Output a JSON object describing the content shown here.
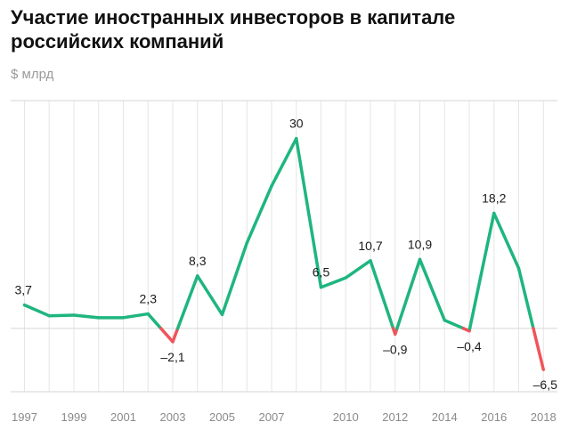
{
  "title_line1": "Участие иностранных инвесторов в капитале",
  "title_line2": "российских компаний",
  "subtitle": "$ млрд",
  "colors": {
    "positive": "#1fb57f",
    "negative": "#f0545a"
  },
  "chart_data": {
    "type": "line",
    "title": "Участие иностранных инвесторов в капитале российских компаний",
    "ylabel": "$ млрд",
    "xlabel": "",
    "grid": true,
    "ylim": [
      -10,
      36
    ],
    "x": [
      1997,
      1998,
      1999,
      2000,
      2001,
      2002,
      2003,
      2004,
      2005,
      2006,
      2007,
      2008,
      2009,
      2010,
      2011,
      2012,
      2013,
      2014,
      2015,
      2016,
      2017,
      2018
    ],
    "values": [
      3.7,
      2.0,
      2.1,
      1.7,
      1.7,
      2.3,
      -2.1,
      8.3,
      2.2,
      13.5,
      22.5,
      30.0,
      6.5,
      8.0,
      10.7,
      -0.9,
      10.9,
      1.3,
      -0.4,
      18.2,
      9.5,
      -6.5
    ],
    "point_labels": [
      {
        "x": 1997,
        "text": "3,7"
      },
      {
        "x": 2002,
        "text": "2,3"
      },
      {
        "x": 2003,
        "text": "–2,1"
      },
      {
        "x": 2004,
        "text": "8,3"
      },
      {
        "x": 2008,
        "text": "30"
      },
      {
        "x": 2009,
        "text": "6,5"
      },
      {
        "x": 2011,
        "text": "10,7"
      },
      {
        "x": 2012,
        "text": "–0,9"
      },
      {
        "x": 2013,
        "text": "10,9"
      },
      {
        "x": 2015,
        "text": "–0,4"
      },
      {
        "x": 2016,
        "text": "18,2"
      },
      {
        "x": 2018,
        "text": "–6,5"
      }
    ],
    "x_ticks": [
      {
        "x": 1997,
        "label": "1997"
      },
      {
        "x": 1999,
        "label": "1999"
      },
      {
        "x": 2001,
        "label": "2001"
      },
      {
        "x": 2003,
        "label": "2003"
      },
      {
        "x": 2005,
        "label": "2005"
      },
      {
        "x": 2007,
        "label": "2007"
      },
      {
        "x": 2010,
        "label": "2010"
      },
      {
        "x": 2012,
        "label": "2012"
      },
      {
        "x": 2014,
        "label": "2014"
      },
      {
        "x": 2016,
        "label": "2016"
      },
      {
        "x": 2018,
        "label": "2018"
      }
    ]
  }
}
